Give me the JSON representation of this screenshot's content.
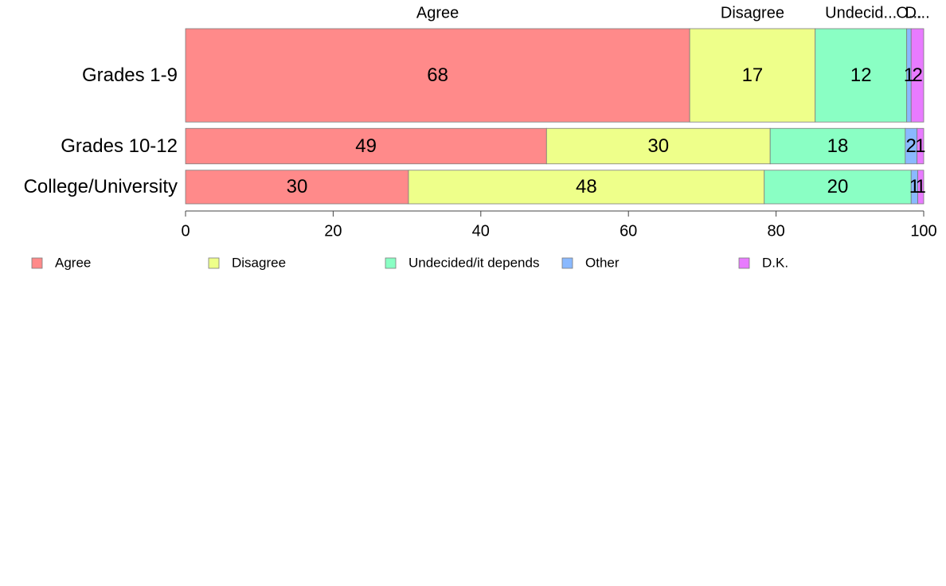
{
  "chart_data": {
    "type": "bar",
    "orientation": "horizontal",
    "stacked": true,
    "xlim": [
      0,
      100
    ],
    "x_ticks": [
      "0",
      "20",
      "40",
      "60",
      "80",
      "100"
    ],
    "categories": [
      "Grades 1-9",
      "Grades 10-12",
      "College/University"
    ],
    "category_weights": [
      1.0,
      0.38,
      0.36
    ],
    "series": [
      {
        "name": "Agree",
        "color": "#ff8a8a",
        "values": [
          68.3,
          48.9,
          30.2
        ],
        "labels": [
          "68",
          "49",
          "30"
        ]
      },
      {
        "name": "Disagree",
        "color": "#eeff8a",
        "values": [
          17.0,
          30.3,
          48.2
        ],
        "labels": [
          "17",
          "30",
          "48"
        ]
      },
      {
        "name": "Undecided/it depends",
        "color": "#8affc4",
        "values": [
          12.4,
          18.3,
          19.9
        ],
        "labels": [
          "12",
          "18",
          "20"
        ]
      },
      {
        "name": "Other",
        "color": "#8ab9ff",
        "values": [
          0.6,
          1.6,
          0.9
        ],
        "labels": [
          "1",
          "2",
          "1"
        ]
      },
      {
        "name": "D.K.",
        "color": "#e87bff",
        "values": [
          1.7,
          0.9,
          0.8
        ],
        "labels": [
          "2",
          "1",
          "1"
        ]
      }
    ],
    "top_labels": [
      "Agree",
      "Disagree",
      "Undecid...",
      "O...",
      "D..."
    ],
    "legend_position": "bottom",
    "grid": false
  }
}
